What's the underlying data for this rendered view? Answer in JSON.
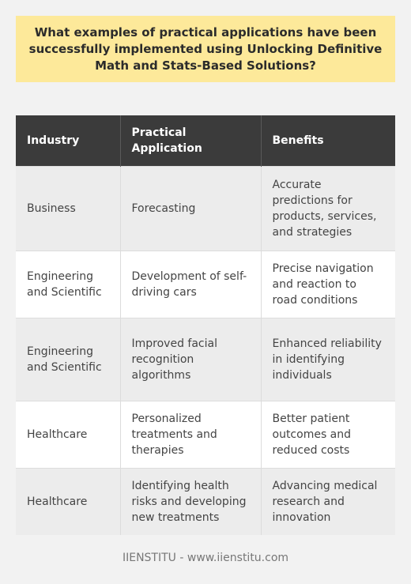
{
  "title": "What examples of practical applications have been successfully implemented using Unlocking Definitive Math and Stats-Based Solutions?",
  "table": {
    "headers": [
      "Industry",
      "Practical Application",
      "Benefits"
    ],
    "rows": [
      [
        "Business",
        "Forecasting",
        "Accurate predictions for products, services, and strategies"
      ],
      [
        "Engineering and Scientific",
        "Development of self-driving cars",
        "Precise navigation and reaction to road conditions"
      ],
      [
        "Engineering and Scientific",
        "Improved facial recognition algorithms",
        "Enhanced reliability in identifying individuals"
      ],
      [
        "Healthcare",
        "Personalized treatments and therapies",
        "Better patient outcomes and reduced costs"
      ],
      [
        "Healthcare",
        "Identifying health risks and developing new treatments",
        "Advancing medical research and innovation"
      ]
    ]
  },
  "footer": "IIENSTITU - www.iienstitu.com"
}
